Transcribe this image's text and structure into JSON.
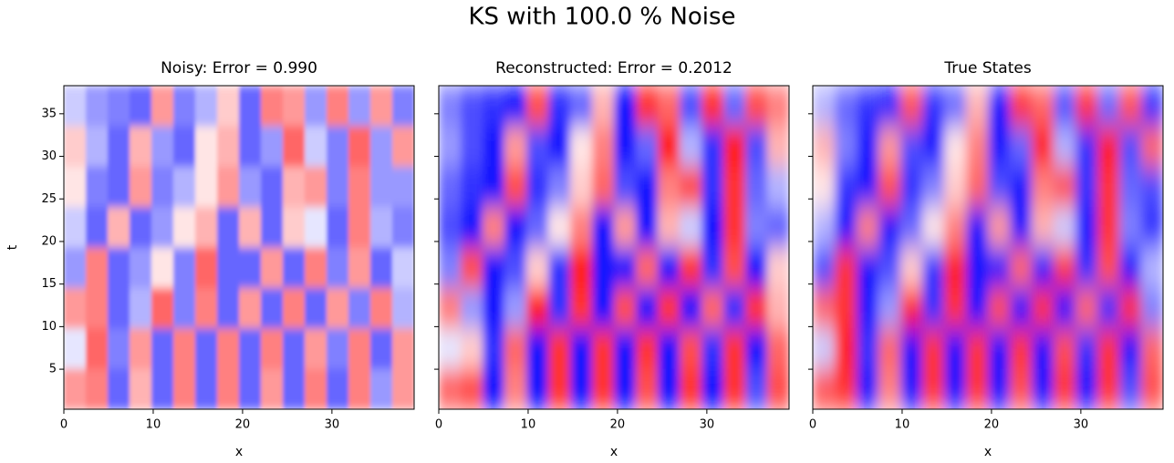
{
  "title": "KS with 100.0 % Noise",
  "chart_data": [
    {
      "type": "heatmap",
      "title": "Noisy: Error = 0.990",
      "x_label": "x",
      "y_label": "t",
      "xlim": [
        0,
        39.2
      ],
      "ylim": [
        0.3,
        38.3
      ],
      "xticks": [
        0,
        10,
        20,
        30
      ],
      "yticks": [
        5,
        10,
        15,
        20,
        25,
        30,
        35
      ],
      "ytick_labels": true,
      "zlim": [
        -1,
        1
      ],
      "smooth": 2,
      "z": [
        [
          -0.2,
          -0.4,
          -0.5,
          -0.6,
          0.4,
          -0.5,
          -0.3,
          0.2,
          -0.6,
          0.5,
          0.4,
          -0.4,
          0.5,
          -0.4,
          0.4,
          -0.5
        ],
        [
          0.2,
          -0.3,
          -0.6,
          0.3,
          -0.4,
          -0.6,
          0.1,
          0.3,
          -0.6,
          -0.4,
          0.6,
          -0.2,
          -0.5,
          0.6,
          -0.4,
          0.4
        ],
        [
          0.1,
          -0.5,
          -0.6,
          0.4,
          -0.5,
          -0.3,
          0.1,
          0.4,
          -0.4,
          -0.6,
          0.3,
          0.4,
          -0.5,
          0.5,
          -0.4,
          -0.4
        ],
        [
          -0.2,
          -0.6,
          0.3,
          -0.6,
          -0.4,
          0.1,
          0.3,
          -0.6,
          0.3,
          -0.6,
          0.2,
          -0.1,
          -0.6,
          0.5,
          -0.3,
          -0.5
        ],
        [
          -0.4,
          0.5,
          -0.6,
          -0.4,
          0.1,
          -0.5,
          0.6,
          -0.6,
          -0.6,
          0.4,
          -0.6,
          0.5,
          -0.5,
          0.4,
          -0.6,
          -0.2
        ],
        [
          0.4,
          0.5,
          -0.6,
          -0.3,
          0.6,
          -0.5,
          0.5,
          -0.6,
          0.4,
          -0.6,
          0.5,
          -0.6,
          0.4,
          -0.5,
          0.5,
          -0.3
        ],
        [
          -0.1,
          0.6,
          -0.5,
          0.4,
          -0.6,
          0.5,
          -0.6,
          0.5,
          -0.6,
          0.5,
          -0.6,
          0.4,
          -0.5,
          0.5,
          -0.6,
          0.4
        ],
        [
          0.4,
          0.5,
          -0.6,
          0.3,
          -0.6,
          0.5,
          -0.6,
          0.5,
          -0.6,
          0.4,
          -0.6,
          0.5,
          -0.6,
          0.5,
          -0.4,
          0.4
        ]
      ]
    },
    {
      "type": "heatmap",
      "title": "Reconstructed: Error = 0.2012",
      "x_label": "x",
      "xlim": [
        0,
        39.2
      ],
      "ylim": [
        0.3,
        38.3
      ],
      "xticks": [
        0,
        10,
        20,
        30
      ],
      "yticks": [
        5,
        10,
        15,
        20,
        25,
        30,
        35
      ],
      "ytick_labels": false,
      "zlim": [
        -1,
        1
      ],
      "smooth": 5,
      "z": [
        [
          -0.5,
          -0.7,
          -0.8,
          -0.9,
          0.7,
          -0.8,
          -0.6,
          0.3,
          -0.9,
          0.8,
          0.6,
          -0.7,
          0.8,
          -0.6,
          0.7,
          0.5
        ],
        [
          -0.4,
          -0.7,
          -0.9,
          0.4,
          -0.7,
          -0.9,
          0.1,
          0.5,
          -0.9,
          -0.6,
          0.9,
          -0.3,
          -0.8,
          0.9,
          -0.7,
          0.3
        ],
        [
          -0.6,
          -0.8,
          -0.9,
          0.7,
          -0.8,
          -0.5,
          0.2,
          0.6,
          -0.7,
          -0.9,
          0.5,
          0.7,
          -0.8,
          0.8,
          -0.6,
          -0.3
        ],
        [
          -0.7,
          -0.9,
          0.5,
          -0.9,
          -0.6,
          0.1,
          0.5,
          -0.9,
          0.4,
          -0.9,
          0.3,
          -0.2,
          -0.9,
          0.8,
          -0.5,
          -0.6
        ],
        [
          -0.5,
          0.7,
          -0.9,
          -0.7,
          0.2,
          -0.8,
          0.9,
          -0.9,
          -0.9,
          0.6,
          -0.9,
          0.8,
          -0.8,
          0.7,
          -0.9,
          0.2
        ],
        [
          0.5,
          -0.4,
          -0.9,
          -0.4,
          0.9,
          -0.8,
          0.8,
          -0.9,
          0.7,
          -0.9,
          0.8,
          -0.9,
          0.6,
          -0.8,
          0.8,
          0.3
        ],
        [
          -0.1,
          0.2,
          -0.8,
          0.6,
          -0.9,
          0.8,
          -0.9,
          0.8,
          -0.9,
          0.8,
          -0.9,
          0.7,
          -0.8,
          0.8,
          -0.9,
          0.6
        ],
        [
          0.6,
          0.7,
          -0.9,
          0.5,
          -0.9,
          0.8,
          -0.9,
          0.8,
          -0.9,
          0.7,
          -0.9,
          0.8,
          -0.9,
          0.8,
          -0.7,
          0.7
        ]
      ]
    },
    {
      "type": "heatmap",
      "title": "True States",
      "x_label": "x",
      "xlim": [
        0,
        39.2
      ],
      "ylim": [
        0.3,
        38.3
      ],
      "xticks": [
        0,
        10,
        20,
        30
      ],
      "yticks": [
        5,
        10,
        15,
        20,
        25,
        30,
        35
      ],
      "ytick_labels": false,
      "zlim": [
        -1,
        1
      ],
      "smooth": 6,
      "z": [
        [
          -0.3,
          -0.6,
          -0.8,
          -0.9,
          0.7,
          -0.8,
          -0.6,
          0.3,
          -0.9,
          0.8,
          0.6,
          -0.7,
          0.8,
          -0.6,
          0.7,
          -0.8
        ],
        [
          0.3,
          -0.5,
          -0.9,
          0.4,
          -0.7,
          -0.9,
          0.1,
          0.5,
          -0.9,
          -0.6,
          0.9,
          -0.3,
          -0.8,
          0.9,
          -0.7,
          0.6
        ],
        [
          0.1,
          -0.8,
          -0.9,
          0.7,
          -0.8,
          -0.5,
          0.2,
          0.6,
          -0.7,
          -0.9,
          0.5,
          0.7,
          -0.8,
          0.8,
          -0.6,
          -0.7
        ],
        [
          -0.3,
          -0.9,
          0.5,
          -0.9,
          -0.6,
          0.1,
          0.5,
          -0.9,
          0.4,
          -0.9,
          0.3,
          -0.2,
          -0.9,
          0.8,
          -0.5,
          -0.8
        ],
        [
          -0.7,
          0.8,
          -0.9,
          -0.7,
          0.2,
          -0.8,
          0.9,
          -0.9,
          -0.9,
          0.6,
          -0.9,
          0.8,
          -0.8,
          0.7,
          -0.9,
          -0.3
        ],
        [
          0.6,
          0.8,
          -0.9,
          -0.4,
          0.9,
          -0.8,
          0.8,
          -0.9,
          0.7,
          -0.9,
          0.8,
          -0.9,
          0.6,
          -0.8,
          0.8,
          -0.5
        ],
        [
          -0.2,
          0.9,
          -0.8,
          0.6,
          -0.9,
          0.8,
          -0.9,
          0.8,
          -0.9,
          0.8,
          -0.9,
          0.7,
          -0.8,
          0.8,
          -0.9,
          0.6
        ],
        [
          0.7,
          0.8,
          -0.9,
          0.5,
          -0.9,
          0.8,
          -0.9,
          0.8,
          -0.9,
          0.7,
          -0.9,
          0.8,
          -0.9,
          0.8,
          -0.7,
          0.7
        ]
      ]
    }
  ]
}
